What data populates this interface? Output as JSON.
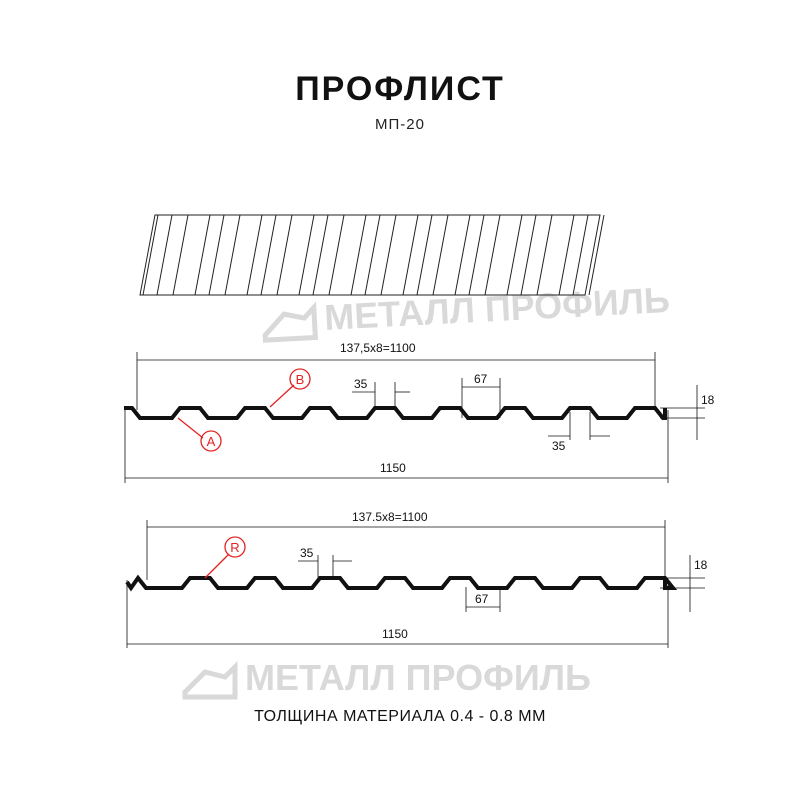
{
  "header": {
    "title": "ПРОФЛИСТ",
    "subtitle": "МП-20"
  },
  "watermark": {
    "logo_text": "МЕТАЛЛ ПРОФИЛЬ",
    "color": "#d9d9d9"
  },
  "profile_1": {
    "pitch_label": "137,5x8=1100",
    "width_label": "1150",
    "rib_top_label": "35",
    "rib_bottom_label": "67",
    "valley_label": "35",
    "height_label": "18",
    "marker_a": "A",
    "marker_b": "B"
  },
  "profile_2": {
    "pitch_label": "137.5x8=1100",
    "width_label": "1150",
    "rib_top_label": "35",
    "rib_bottom_label": "67",
    "height_label": "18",
    "marker_r": "R"
  },
  "footer": {
    "thickness": "ТОЛЩИНА МАТЕРИАЛА 0.4 - 0.8 ММ"
  },
  "colors": {
    "profile": "#111111",
    "marker": "#e32222"
  }
}
